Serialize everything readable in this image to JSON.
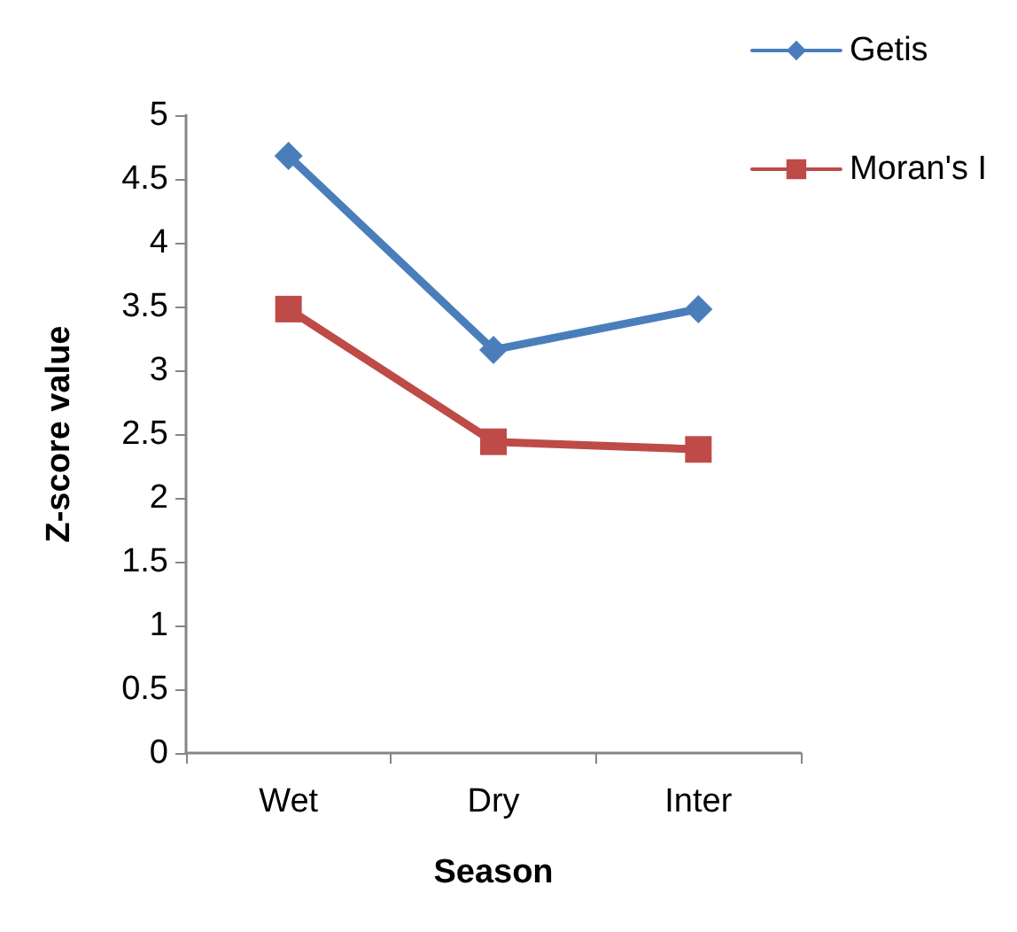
{
  "chart_data": {
    "type": "line",
    "xlabel": "Season",
    "ylabel": "Z-score value",
    "categories": [
      "Wet",
      "Dry",
      "Inter"
    ],
    "series": [
      {
        "name": "Getis",
        "color": "#4a7ebb",
        "marker": "diamond",
        "values": [
          4.68,
          3.16,
          3.48
        ]
      },
      {
        "name": "Moran's I",
        "color": "#be4b48",
        "marker": "square",
        "values": [
          3.48,
          2.44,
          2.38
        ]
      }
    ],
    "ylim": [
      0,
      5
    ],
    "yticks": [
      0,
      0.5,
      1,
      1.5,
      2,
      2.5,
      3,
      3.5,
      4,
      4.5,
      5
    ],
    "grid": false,
    "legend": "top right",
    "line_style": "solid"
  }
}
